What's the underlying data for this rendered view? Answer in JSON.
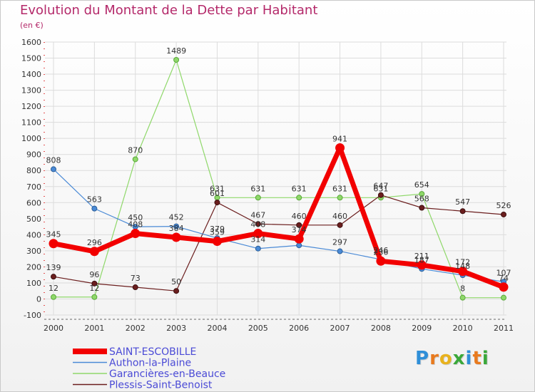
{
  "header": {
    "title": "Evolution du Montant de la Dette par Habitant",
    "subtitle": "(en €)"
  },
  "logo": {
    "letters": [
      "P",
      "r",
      "o",
      "x",
      "i",
      "t",
      "i"
    ],
    "colors": [
      "#2f8fd8",
      "#e87a1e",
      "#e8b21e",
      "#3aa83a",
      "#2f8fd8",
      "#e87a1e",
      "#3aa83a"
    ]
  },
  "chart_data": {
    "type": "line",
    "title": "Evolution du Montant de la Dette par Habitant",
    "ylabel": "(en €)",
    "xlabel": "",
    "ylim": [
      -100,
      1600
    ],
    "yticks": [
      -100,
      0,
      100,
      200,
      300,
      400,
      500,
      600,
      700,
      800,
      900,
      1000,
      1100,
      1200,
      1300,
      1400,
      1500,
      1600
    ],
    "categories": [
      "2000",
      "2001",
      "2002",
      "2003",
      "2004",
      "2005",
      "2006",
      "2007",
      "2008",
      "2009",
      "2010",
      "2011"
    ],
    "grid": true,
    "legend_position": "bottom-left",
    "series": [
      {
        "name": "Garancières-en-Beauce",
        "color": "#8fd86a",
        "values": [
          12,
          12,
          870,
          1489,
          631,
          631,
          631,
          631,
          631,
          654,
          8,
          8
        ],
        "labels": [
          "12",
          "12",
          "870",
          "1489",
          "631",
          "631",
          "631",
          "631",
          "631",
          "654",
          "8",
          null
        ]
      },
      {
        "name": "Plessis-Saint-Benoist",
        "color": "#6b1e1e",
        "values": [
          139,
          96,
          73,
          50,
          601,
          467,
          460,
          460,
          647,
          568,
          547,
          526
        ],
        "labels": [
          "139",
          "96",
          "73",
          "50",
          "601",
          "467",
          "460",
          "460",
          "647",
          "568",
          "547",
          "526"
        ]
      },
      {
        "name": "Authon-la-Plaine",
        "color": "#4a8ad6",
        "values": [
          808,
          563,
          450,
          452,
          379,
          314,
          334,
          297,
          246,
          187,
          148,
          107
        ],
        "labels": [
          "808",
          "563",
          "450",
          "452",
          "379",
          "314",
          null,
          "297",
          "246",
          "187",
          "148",
          "107"
        ]
      },
      {
        "name": "SAINT-ESCOBILLE",
        "color": "#f20000",
        "values": [
          345,
          296,
          408,
          384,
          359,
          408,
          374,
          941,
          236,
          211,
          172,
          74
        ],
        "labels": [
          "345",
          "296",
          "408",
          "384",
          "359",
          "408",
          "374",
          "941",
          "236",
          "211",
          "172",
          "74"
        ]
      }
    ],
    "legend": [
      "SAINT-ESCOBILLE",
      "Authon-la-Plaine",
      "Garancières-en-Beauce",
      "Plessis-Saint-Benoist"
    ]
  }
}
